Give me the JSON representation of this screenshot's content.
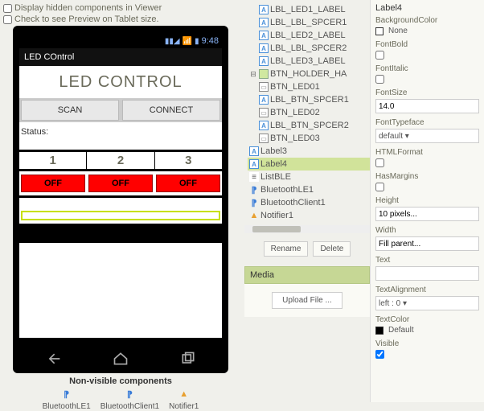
{
  "viewer": {
    "hidden_checkbox_label": "Display hidden components in Viewer",
    "tablet_checkbox_label": "Check to see Preview on Tablet size.",
    "status_time": "9:48",
    "app_title": "LED COntrol",
    "heading": "LED CONTROL",
    "scan_btn": "SCAN",
    "connect_btn": "CONNECT",
    "status_label": "Status:",
    "num1": "1",
    "num2": "2",
    "num3": "3",
    "off1": "OFF",
    "off2": "OFF",
    "off3": "OFF",
    "nonvis_label": "Non-visible components",
    "nv1": "BluetoothLE1",
    "nv2": "BluetoothClient1",
    "nv3": "Notifier1"
  },
  "tree": {
    "items": [
      {
        "icon": "A",
        "label": "LBL_LED1_LABEL",
        "indent": 16
      },
      {
        "icon": "A",
        "label": "LBL_LBL_SPCER1",
        "indent": 16
      },
      {
        "icon": "A",
        "label": "LBL_LED2_LABEL",
        "indent": 16
      },
      {
        "icon": "A",
        "label": "LBL_LBL_SPCER2",
        "indent": 16
      },
      {
        "icon": "A",
        "label": "LBL_LED3_LABEL",
        "indent": 16
      },
      {
        "icon": "H",
        "label": "BTN_HOLDER_HA",
        "indent": 4,
        "expander": "⊟"
      },
      {
        "icon": "B",
        "label": "BTN_LED01",
        "indent": 16
      },
      {
        "icon": "A",
        "label": "LBL_BTN_SPCER1",
        "indent": 16
      },
      {
        "icon": "B",
        "label": "BTN_LED02",
        "indent": 16
      },
      {
        "icon": "A",
        "label": "LBL_BTN_SPCER2",
        "indent": 16
      },
      {
        "icon": "B",
        "label": "BTN_LED03",
        "indent": 16
      },
      {
        "icon": "A",
        "label": "Label3",
        "indent": 4
      },
      {
        "icon": "A",
        "label": "Label4",
        "indent": 4,
        "sel": true
      },
      {
        "icon": "L",
        "label": "ListBLE",
        "indent": 4
      },
      {
        "icon": "BT",
        "label": "BluetoothLE1",
        "indent": 4
      },
      {
        "icon": "BT",
        "label": "BluetoothClient1",
        "indent": 4
      },
      {
        "icon": "N",
        "label": "Notifier1",
        "indent": 4
      }
    ],
    "rename_btn": "Rename",
    "delete_btn": "Delete",
    "media_head": "Media",
    "upload_btn": "Upload File ..."
  },
  "props": {
    "selected_component": "Label4",
    "bgcolor_label": "BackgroundColor",
    "bgcolor_value": "None",
    "fontbold_label": "FontBold",
    "fontitalic_label": "FontItalic",
    "fontsize_label": "FontSize",
    "fontsize_value": "14.0",
    "fonttype_label": "FontTypeface",
    "fonttype_value": "default ▾",
    "htmlformat_label": "HTMLFormat",
    "hasmargins_label": "HasMargins",
    "height_label": "Height",
    "height_value": "10 pixels...",
    "width_label": "Width",
    "width_value": "Fill parent...",
    "text_label": "Text",
    "text_value": "",
    "textalign_label": "TextAlignment",
    "textalign_value": "left : 0 ▾",
    "textcolor_label": "TextColor",
    "textcolor_value": "Default",
    "visible_label": "Visible"
  },
  "colors": {
    "led_off_bg": "#ff0000",
    "selected_tree_bg": "#d1e39a",
    "media_head_bg": "#c6d795"
  }
}
